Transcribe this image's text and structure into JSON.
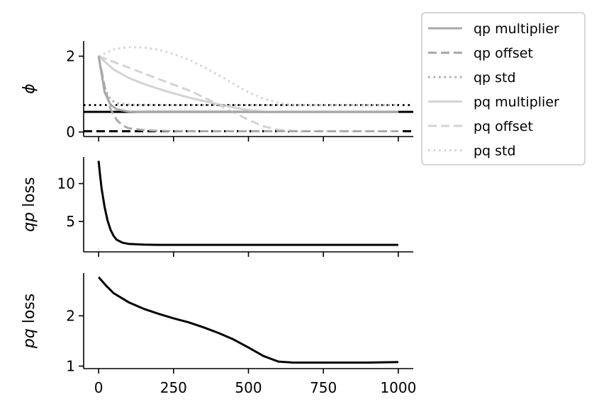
{
  "chart_data": [
    {
      "type": "line",
      "ylabel": "ϕ",
      "xlim": [
        -50,
        1050
      ],
      "ylim": [
        -0.12,
        2.4
      ],
      "yticks": [
        0,
        2
      ],
      "xticks": [
        0,
        250,
        500,
        750,
        1000
      ],
      "show_xtick_labels": false,
      "hlines": [
        {
          "y": 0.53,
          "style": "solid",
          "color": "#000000"
        },
        {
          "y": 0.02,
          "style": "dashed",
          "color": "#000000"
        },
        {
          "y": 0.71,
          "style": "dotted",
          "color": "#000000"
        }
      ],
      "series": [
        {
          "name": "qp multiplier",
          "color": "#a9a9a9",
          "style": "solid",
          "x": [
            0,
            20,
            40,
            60,
            100,
            150,
            200,
            400,
            700,
            1000
          ],
          "y": [
            2.0,
            1.05,
            0.72,
            0.6,
            0.54,
            0.53,
            0.53,
            0.53,
            0.53,
            0.53
          ]
        },
        {
          "name": "qp offset",
          "color": "#a9a9a9",
          "style": "dashed",
          "x": [
            0,
            20,
            40,
            60,
            80,
            100,
            150,
            200,
            300,
            500,
            1000
          ],
          "y": [
            2.0,
            1.2,
            0.6,
            0.32,
            0.17,
            0.1,
            0.05,
            0.03,
            0.02,
            0.02,
            0.02
          ]
        },
        {
          "name": "qp std",
          "color": "#a9a9a9",
          "style": "dotted",
          "x": [
            0,
            20,
            40,
            60,
            100,
            200,
            400,
            700,
            1000
          ],
          "y": [
            2.0,
            1.15,
            0.85,
            0.76,
            0.72,
            0.71,
            0.71,
            0.71,
            0.71
          ]
        },
        {
          "name": "pq multiplier",
          "color": "#d3d3d3",
          "style": "solid",
          "x": [
            0,
            50,
            100,
            150,
            200,
            250,
            300,
            350,
            400,
            450,
            500,
            550,
            600,
            700,
            800,
            1000
          ],
          "y": [
            2.0,
            1.65,
            1.43,
            1.27,
            1.14,
            1.02,
            0.91,
            0.82,
            0.73,
            0.65,
            0.58,
            0.54,
            0.53,
            0.53,
            0.53,
            0.53
          ]
        },
        {
          "name": "pq offset",
          "color": "#d3d3d3",
          "style": "dashed",
          "x": [
            0,
            50,
            100,
            150,
            200,
            250,
            300,
            350,
            400,
            450,
            500,
            550,
            600,
            650,
            700,
            1000
          ],
          "y": [
            2.0,
            1.85,
            1.7,
            1.55,
            1.4,
            1.25,
            1.1,
            0.92,
            0.72,
            0.52,
            0.32,
            0.15,
            0.06,
            0.03,
            0.02,
            0.02
          ]
        },
        {
          "name": "pq std",
          "color": "#d3d3d3",
          "style": "dotted",
          "x": [
            0,
            50,
            100,
            150,
            200,
            250,
            300,
            350,
            400,
            450,
            500,
            550,
            600,
            650,
            700,
            800,
            1000
          ],
          "y": [
            2.0,
            2.18,
            2.24,
            2.23,
            2.17,
            2.06,
            1.91,
            1.72,
            1.5,
            1.27,
            1.05,
            0.88,
            0.77,
            0.72,
            0.71,
            0.71,
            0.71
          ]
        }
      ]
    },
    {
      "type": "line",
      "ylabel_italic": "qp",
      "ylabel_rest": " loss",
      "xlim": [
        -50,
        1050
      ],
      "ylim": [
        1.0,
        13.5
      ],
      "yticks": [
        5,
        10
      ],
      "xticks": [
        0,
        250,
        500,
        750,
        1000
      ],
      "show_xtick_labels": false,
      "series": [
        {
          "color": "#000000",
          "style": "solid",
          "x": [
            0,
            5,
            10,
            20,
            30,
            40,
            50,
            60,
            80,
            100,
            150,
            200,
            400,
            600,
            800,
            1000
          ],
          "y": [
            13.0,
            11.0,
            9.3,
            6.9,
            5.1,
            3.9,
            3.1,
            2.6,
            2.2,
            2.05,
            1.95,
            1.92,
            1.92,
            1.92,
            1.92,
            1.92
          ]
        }
      ]
    },
    {
      "type": "line",
      "ylabel_italic": "pq",
      "ylabel_rest": " loss",
      "xlim": [
        -50,
        1050
      ],
      "ylim": [
        0.95,
        2.85
      ],
      "yticks": [
        1,
        2
      ],
      "xticks": [
        0,
        250,
        500,
        750,
        1000
      ],
      "xticklabels": [
        "0",
        "250",
        "500",
        "750",
        "1000"
      ],
      "show_xtick_labels": true,
      "series": [
        {
          "color": "#000000",
          "style": "solid",
          "x": [
            0,
            25,
            50,
            100,
            150,
            200,
            250,
            300,
            350,
            400,
            450,
            500,
            550,
            600,
            650,
            700,
            800,
            900,
            1000
          ],
          "y": [
            2.77,
            2.6,
            2.45,
            2.27,
            2.14,
            2.04,
            1.95,
            1.87,
            1.77,
            1.66,
            1.53,
            1.37,
            1.2,
            1.09,
            1.07,
            1.07,
            1.07,
            1.07,
            1.08
          ]
        }
      ]
    }
  ],
  "legend": {
    "placement": "outside-right-top",
    "items": [
      {
        "label": "qp multiplier",
        "color": "#a9a9a9",
        "style": "solid"
      },
      {
        "label": "qp offset",
        "color": "#a9a9a9",
        "style": "dashed"
      },
      {
        "label": "qp std",
        "color": "#a9a9a9",
        "style": "dotted"
      },
      {
        "label": "pq multiplier",
        "color": "#d3d3d3",
        "style": "solid"
      },
      {
        "label": "pq offset",
        "color": "#d3d3d3",
        "style": "dashed"
      },
      {
        "label": "pq std",
        "color": "#d3d3d3",
        "style": "dotted"
      }
    ]
  }
}
